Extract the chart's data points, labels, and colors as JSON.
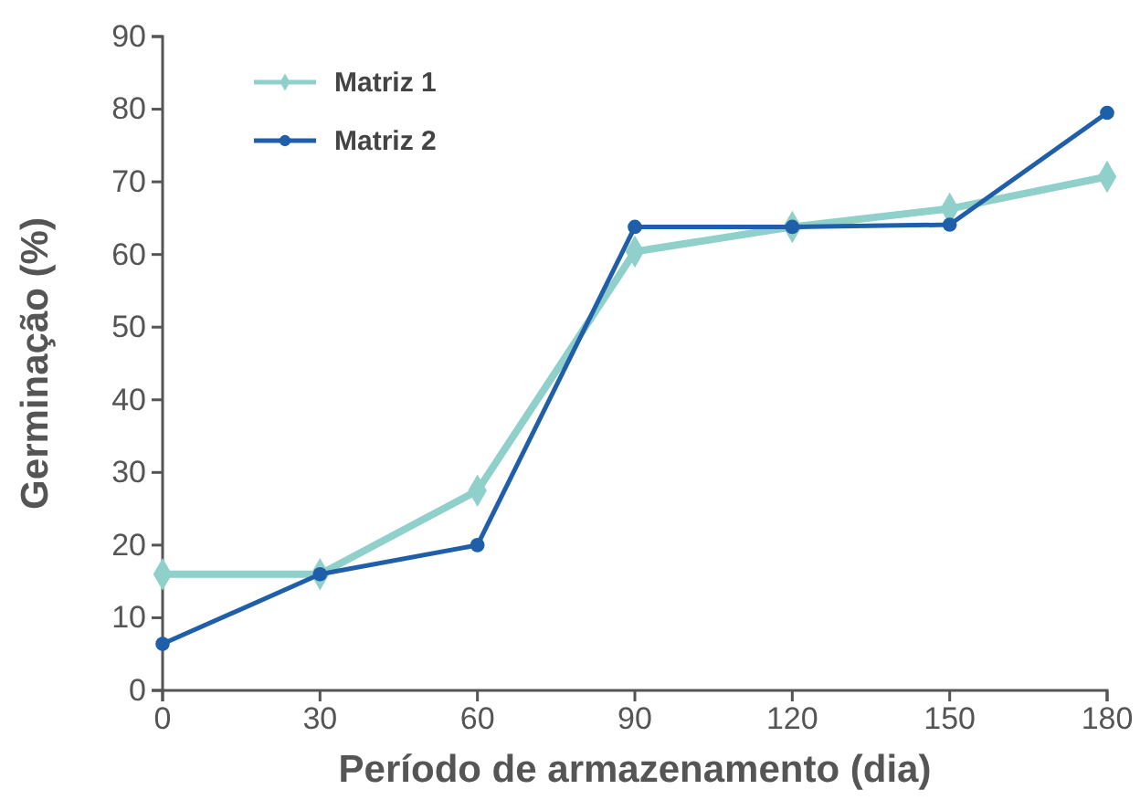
{
  "chart_data": {
    "type": "line",
    "xlabel": "Período de armazenamento (dia)",
    "ylabel": "Germinação (%)",
    "x": [
      0,
      30,
      60,
      90,
      120,
      150,
      180
    ],
    "xlim": [
      0,
      180
    ],
    "xticks": [
      0,
      30,
      60,
      90,
      120,
      150,
      180
    ],
    "ylim": [
      0,
      90
    ],
    "yticks": [
      0,
      10,
      20,
      30,
      40,
      50,
      60,
      70,
      80,
      90
    ],
    "legend": "top left",
    "grid": false,
    "series": [
      {
        "name": "Matriz 1",
        "color": "#8fd0ca",
        "marker": "diamond",
        "values": [
          16,
          16,
          27.5,
          60.4,
          63.8,
          66.3,
          70.7
        ]
      },
      {
        "name": "Matriz 2",
        "color": "#1f5ea8",
        "marker": "circle",
        "values": [
          6.4,
          16,
          20,
          63.8,
          63.8,
          64.1,
          79.5
        ]
      }
    ]
  }
}
